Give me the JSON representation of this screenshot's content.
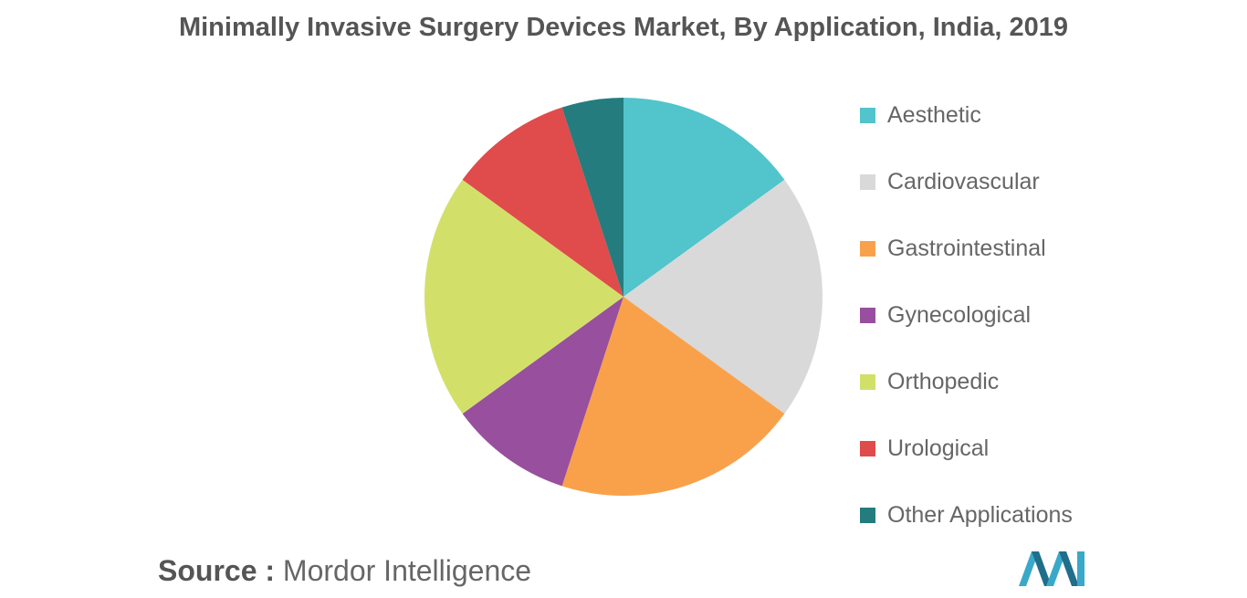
{
  "chart_data": {
    "type": "pie",
    "title": "Minimally Invasive Surgery Devices Market, By Application, India, 2019",
    "categories": [
      "Aesthetic",
      "Cardiovascular",
      "Gastrointestinal",
      "Gynecological",
      "Orthopedic",
      "Urological",
      "Other Applications"
    ],
    "values": [
      15,
      20,
      20,
      10,
      20,
      10,
      5
    ],
    "colors": [
      "#52C4CB",
      "#D9D9D9",
      "#F9A14A",
      "#984F9E",
      "#D2E06A",
      "#E04B4B",
      "#247C7E"
    ],
    "legend_position": "right",
    "start_angle_deg": 0,
    "direction": "clockwise"
  },
  "source": {
    "label": "Source :",
    "text": "Mordor Intelligence"
  }
}
